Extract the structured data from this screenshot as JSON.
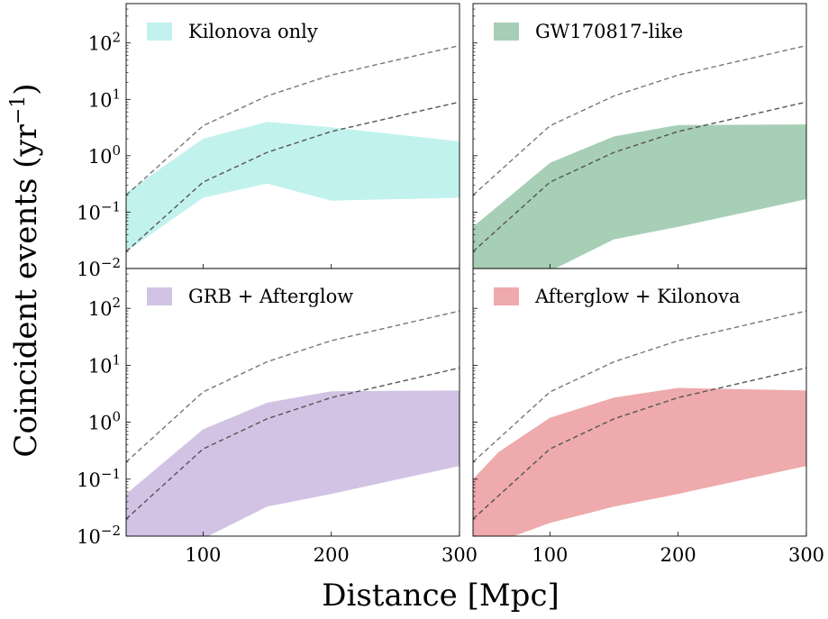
{
  "figure": {
    "xlabel": "Distance [Mpc]",
    "ylabel_main": "Coincident events (yr",
    "ylabel_sup": "−1",
    "ylabel_close": ")"
  },
  "axes": {
    "x_range": [
      40,
      300
    ],
    "x_ticks": [
      100,
      200,
      300
    ],
    "y_scale": "log",
    "y_range": [
      0.01,
      500
    ],
    "y_ticks": [
      {
        "value": 0.01,
        "base": "10",
        "exp": "−2"
      },
      {
        "value": 0.1,
        "base": "10",
        "exp": "−1"
      },
      {
        "value": 1,
        "base": "10",
        "exp": "0"
      },
      {
        "value": 10,
        "base": "10",
        "exp": "1"
      },
      {
        "value": 100,
        "base": "10",
        "exp": "2"
      }
    ]
  },
  "chart_data": [
    {
      "type": "area",
      "panel": "top-left",
      "legend": {
        "label": "Kilonova only",
        "color": "#c2f2ee",
        "position": "top-left"
      },
      "band": {
        "x": [
          40,
          100,
          150,
          200,
          300
        ],
        "lower": [
          0.02,
          0.18,
          0.32,
          0.16,
          0.18
        ],
        "upper": [
          0.22,
          2.0,
          4.0,
          3.2,
          1.8
        ]
      },
      "reference_lines": [
        {
          "style": "dashed",
          "color": "#777777",
          "x": [
            40,
            100,
            150,
            200,
            300
          ],
          "y": [
            0.2,
            3.4,
            11.5,
            27,
            90
          ]
        },
        {
          "style": "dashed",
          "color": "#555555",
          "x": [
            40,
            100,
            150,
            200,
            300
          ],
          "y": [
            0.02,
            0.34,
            1.15,
            2.7,
            9
          ]
        }
      ]
    },
    {
      "type": "area",
      "panel": "top-right",
      "legend": {
        "label": "GW170817-like",
        "color": "#a7cfb6",
        "position": "top-left"
      },
      "band": {
        "x": [
          40,
          100,
          150,
          200,
          300
        ],
        "lower": [
          0.006,
          0.009,
          0.033,
          0.055,
          0.17
        ],
        "upper": [
          0.055,
          0.75,
          2.2,
          3.5,
          3.6
        ]
      },
      "reference_lines": [
        {
          "style": "dashed",
          "color": "#777777",
          "x": [
            40,
            100,
            150,
            200,
            300
          ],
          "y": [
            0.2,
            3.4,
            11.5,
            27,
            90
          ]
        },
        {
          "style": "dashed",
          "color": "#555555",
          "x": [
            40,
            100,
            150,
            200,
            300
          ],
          "y": [
            0.02,
            0.34,
            1.15,
            2.7,
            9
          ]
        }
      ]
    },
    {
      "type": "area",
      "panel": "bottom-left",
      "legend": {
        "label": "GRB + Afterglow",
        "color": "#d2c3e5",
        "position": "top-left"
      },
      "band": {
        "x": [
          40,
          100,
          150,
          200,
          300
        ],
        "lower": [
          0.006,
          0.009,
          0.033,
          0.055,
          0.17
        ],
        "upper": [
          0.055,
          0.75,
          2.2,
          3.5,
          3.6
        ]
      },
      "reference_lines": [
        {
          "style": "dashed",
          "color": "#777777",
          "x": [
            40,
            100,
            150,
            200,
            300
          ],
          "y": [
            0.2,
            3.4,
            11.5,
            27,
            90
          ]
        },
        {
          "style": "dashed",
          "color": "#555555",
          "x": [
            40,
            100,
            150,
            200,
            300
          ],
          "y": [
            0.02,
            0.34,
            1.15,
            2.7,
            9
          ]
        }
      ]
    },
    {
      "type": "area",
      "panel": "bottom-right",
      "legend": {
        "label": "Afterglow + Kilonova",
        "color": "#eeaaac",
        "position": "top-left"
      },
      "band": {
        "x": [
          40,
          60,
          100,
          150,
          200,
          300
        ],
        "lower": [
          0.008,
          0.008,
          0.017,
          0.033,
          0.055,
          0.17
        ],
        "upper": [
          0.1,
          0.3,
          1.2,
          2.7,
          4.0,
          3.6
        ]
      },
      "reference_lines": [
        {
          "style": "dashed",
          "color": "#777777",
          "x": [
            40,
            100,
            150,
            200,
            300
          ],
          "y": [
            0.2,
            3.4,
            11.5,
            27,
            90
          ]
        },
        {
          "style": "dashed",
          "color": "#555555",
          "x": [
            40,
            100,
            150,
            200,
            300
          ],
          "y": [
            0.02,
            0.34,
            1.15,
            2.7,
            9
          ]
        }
      ]
    }
  ]
}
